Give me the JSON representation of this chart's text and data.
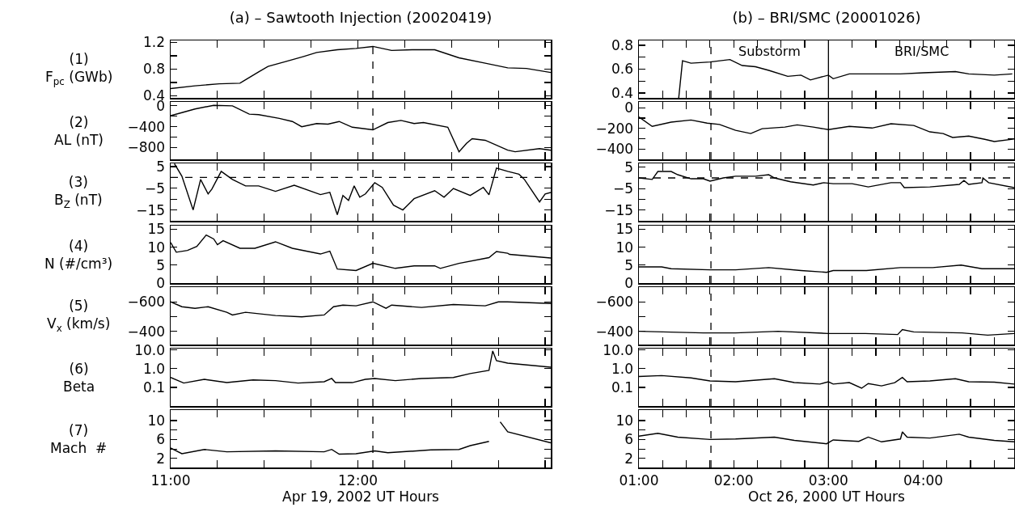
{
  "chart_data": [
    {
      "type": "line",
      "title": "(a) – Sawtooth Injection (20020419)",
      "ylabel": "(1)\nF$_{pc}$ (GWb)",
      "color": "#000000",
      "tick_labels": "y",
      "xlim": [
        11,
        13.03
      ],
      "xticks": [
        11,
        11.25,
        11.5,
        11.75,
        12,
        12.25,
        12.5,
        12.75,
        13
      ],
      "ylim": [
        0.37,
        1.23
      ],
      "yticks": [
        0.4,
        {
          "value": 0.6,
          "label": null
        },
        0.8,
        {
          "value": 1.0,
          "label": null
        },
        1.2
      ],
      "ref_lines": [
        {
          "axis": "x",
          "value": 12.08,
          "line_style": "dashed",
          "color": "#000000"
        }
      ],
      "x": [
        11.0,
        11.13,
        11.26,
        11.37,
        11.4,
        11.47,
        11.52,
        11.61,
        11.71,
        11.78,
        11.89,
        11.99,
        12.08,
        12.18,
        12.29,
        12.41,
        12.54,
        12.68,
        12.8,
        12.9,
        13.03
      ],
      "values": [
        0.51,
        0.55,
        0.58,
        0.59,
        0.64,
        0.76,
        0.84,
        0.91,
        0.99,
        1.05,
        1.09,
        1.11,
        1.14,
        1.08,
        1.09,
        1.09,
        0.97,
        0.89,
        0.82,
        0.81,
        0.75
      ]
    },
    {
      "type": "line",
      "ylabel": "(2)\nAL (nT)",
      "color": "#000000",
      "tick_labels": "y",
      "xlim": [
        11,
        13.03
      ],
      "xticks": [
        11,
        11.25,
        11.5,
        11.75,
        12,
        12.25,
        12.5,
        12.75,
        13
      ],
      "ylim": [
        -1025,
        75
      ],
      "yticks": [
        -800,
        {
          "value": -600,
          "label": null
        },
        -400,
        {
          "value": -200,
          "label": null
        },
        0
      ],
      "ref_lines": [
        {
          "axis": "x",
          "value": 12.08,
          "line_style": "dashed",
          "color": "#000000"
        }
      ],
      "x": [
        11.0,
        11.06,
        11.13,
        11.23,
        11.33,
        11.42,
        11.47,
        11.58,
        11.65,
        11.7,
        11.78,
        11.84,
        11.9,
        11.97,
        12.08,
        12.16,
        12.23,
        12.3,
        12.35,
        12.48,
        12.54,
        12.58,
        12.61,
        12.68,
        12.8,
        12.84,
        12.97,
        13.03
      ],
      "values": [
        -190,
        -130,
        -60,
        10,
        0,
        -160,
        -170,
        -240,
        -300,
        -400,
        -340,
        -350,
        -300,
        -410,
        -460,
        -320,
        -280,
        -340,
        -320,
        -410,
        -880,
        -720,
        -630,
        -660,
        -850,
        -880,
        -820,
        -850
      ]
    },
    {
      "type": "line",
      "ylabel": "(3)\nB$_{Z}$ (nT)",
      "color": "#000000",
      "tick_labels": "y",
      "xlim": [
        11,
        13.03
      ],
      "xticks": [
        11,
        11.25,
        11.5,
        11.75,
        12,
        12.25,
        12.5,
        12.75,
        13
      ],
      "ylim": [
        -20,
        6.5
      ],
      "yticks": [
        -15,
        {
          "value": -10,
          "label": null
        },
        -5,
        5
      ],
      "ref_lines": [
        {
          "axis": "x",
          "value": 12.08,
          "line_style": "dashed",
          "color": "#000000"
        },
        {
          "axis": "y",
          "value": 0,
          "line_style": "dashed",
          "color": "#000000"
        }
      ],
      "x": [
        11.02,
        11.06,
        11.12,
        11.16,
        11.2,
        11.22,
        11.27,
        11.33,
        11.4,
        11.47,
        11.56,
        11.66,
        11.8,
        11.85,
        11.89,
        11.92,
        11.95,
        11.98,
        12.01,
        12.04,
        12.09,
        12.13,
        12.19,
        12.24,
        12.3,
        12.41,
        12.46,
        12.51,
        12.6,
        12.67,
        12.7,
        12.74,
        12.8,
        12.86,
        12.89,
        12.97,
        13.0,
        13.03
      ],
      "values": [
        6.4,
        0.6,
        -15,
        -0.9,
        -7.6,
        -5.4,
        2.8,
        -0.9,
        -3.9,
        -3.9,
        -6.4,
        -3.6,
        -7.9,
        -6.9,
        -17.2,
        -8.3,
        -10.6,
        -3.9,
        -9.1,
        -7.6,
        -2.4,
        -4.6,
        -12.8,
        -15,
        -9.8,
        -6.1,
        -9.1,
        -5.1,
        -8.3,
        -4.6,
        -8,
        4.3,
        2.8,
        1.5,
        -1,
        -11.3,
        -7.6,
        -6.9
      ]
    },
    {
      "type": "line",
      "ylabel": "(4)\nN (#/cm³)",
      "color": "#000000",
      "tick_labels": "y",
      "xlim": [
        11,
        13.03
      ],
      "xticks": [
        11,
        11.25,
        11.5,
        11.75,
        12,
        12.25,
        12.5,
        12.75,
        13
      ],
      "ylim": [
        0,
        16
      ],
      "yticks": [
        0,
        5,
        10,
        15
      ],
      "ref_lines": [
        {
          "axis": "x",
          "value": 12.08,
          "line_style": "dashed",
          "color": "#000000"
        }
      ],
      "x": [
        11.0,
        11.03,
        11.09,
        11.14,
        11.19,
        11.23,
        11.25,
        11.28,
        11.37,
        11.45,
        11.56,
        11.65,
        11.8,
        11.85,
        11.89,
        11.99,
        12.08,
        12.2,
        12.3,
        12.41,
        12.44,
        12.54,
        12.7,
        12.74,
        12.8,
        12.81,
        13.03
      ],
      "values": [
        11.3,
        8.6,
        9.1,
        10.2,
        13.4,
        12.3,
        10.7,
        11.8,
        9.7,
        9.7,
        11.5,
        9.7,
        8.1,
        8.9,
        3.9,
        3.5,
        5.5,
        4.1,
        4.8,
        4.8,
        4.1,
        5.5,
        7.1,
        8.8,
        8.3,
        8.0,
        7.0
      ]
    },
    {
      "type": "line",
      "ylabel": "(5)\nV$_{x}$ (km/s)",
      "color": "#000000",
      "tick_labels": "y",
      "xlim": [
        11,
        13.03
      ],
      "xticks": [
        11,
        11.25,
        11.5,
        11.75,
        12,
        12.25,
        12.5,
        12.75,
        13
      ],
      "ylim": [
        -310,
        -700
      ],
      "yticks": [
        -600,
        {
          "value": -500,
          "label": null
        },
        -400
      ],
      "ref_lines": [
        {
          "axis": "x",
          "value": 12.08,
          "line_style": "dashed",
          "color": "#000000"
        }
      ],
      "x": [
        11.0,
        11.06,
        11.13,
        11.2,
        11.3,
        11.33,
        11.4,
        11.56,
        11.7,
        11.82,
        11.87,
        11.92,
        11.99,
        12.08,
        12.15,
        12.18,
        12.34,
        12.51,
        12.68,
        12.75,
        12.8,
        13.03
      ],
      "values": [
        -600,
        -567,
        -556,
        -567,
        -529,
        -511,
        -529,
        -507,
        -498,
        -511,
        -567,
        -578,
        -573,
        -600,
        -556,
        -578,
        -562,
        -582,
        -573,
        -600,
        -600,
        -589
      ]
    },
    {
      "type": "line",
      "ylabel": "(6)\nBeta",
      "color": "#000000",
      "log": true,
      "tick_labels": "y",
      "xlim": [
        11,
        13.03
      ],
      "xticks": [
        11,
        11.25,
        11.5,
        11.75,
        12,
        12.25,
        12.5,
        12.75,
        13
      ],
      "ylim": [
        0.01,
        12
      ],
      "yticks": [
        {
          "value": 0.1,
          "label": "0.1"
        },
        {
          "value": 1,
          "label": "1.0"
        },
        {
          "value": 10,
          "label": "10.0"
        }
      ],
      "ref_lines": [
        {
          "axis": "x",
          "value": 12.08,
          "line_style": "dashed",
          "color": "#000000"
        }
      ],
      "x": [
        11.0,
        11.07,
        11.18,
        11.3,
        11.44,
        11.56,
        11.68,
        11.82,
        11.86,
        11.88,
        11.97,
        12.04,
        12.09,
        12.2,
        12.34,
        12.51,
        12.6,
        12.7,
        12.72,
        12.74,
        12.8,
        13.03
      ],
      "values": [
        0.34,
        0.17,
        0.27,
        0.18,
        0.25,
        0.23,
        0.17,
        0.2,
        0.3,
        0.18,
        0.18,
        0.27,
        0.3,
        0.23,
        0.3,
        0.34,
        0.55,
        0.82,
        8.9,
        2.7,
        2.0,
        1.2
      ]
    },
    {
      "type": "line",
      "ylabel": "(7)\nMach  #",
      "xlabel": "Apr 19, 2002 UT Hours",
      "color": "#000000",
      "xlim": [
        11,
        13.03
      ],
      "xticks": [
        {
          "value": 11,
          "label": "11:00"
        },
        {
          "value": 11.25,
          "label": null
        },
        {
          "value": 11.5,
          "label": null
        },
        {
          "value": 11.75,
          "label": null
        },
        {
          "value": 12,
          "label": "12:00"
        },
        {
          "value": 12.25,
          "label": null
        },
        {
          "value": 12.5,
          "label": null
        },
        {
          "value": 12.75,
          "label": null
        },
        {
          "value": 13,
          "label": null
        }
      ],
      "ylim": [
        0.1,
        12.2
      ],
      "yticks": [
        2,
        {
          "value": 4,
          "label": null
        },
        6,
        {
          "value": 8,
          "label": null
        },
        10
      ],
      "ref_lines": [
        {
          "axis": "x",
          "value": 12.08,
          "line_style": "dashed",
          "color": "#000000"
        }
      ],
      "x": [
        11.0,
        11.06,
        11.18,
        11.3,
        11.56,
        11.82,
        11.86,
        11.9,
        11.99,
        12.09,
        12.16,
        12.39,
        12.54,
        12.6,
        12.7,
        12.72,
        12.74,
        12.76,
        12.8,
        13.03
      ],
      "values": [
        4.2,
        3.0,
        3.9,
        3.4,
        3.6,
        3.4,
        3.9,
        2.9,
        3.0,
        3.6,
        3.2,
        3.8,
        3.9,
        4.7,
        5.6,
        null,
        null,
        9.7,
        7.6,
        5.3
      ]
    },
    {
      "type": "line",
      "title": "(b) – BRI/SMC (20001026)",
      "color": "#000000",
      "tick_labels": "y",
      "xlim": [
        1,
        4.96
      ],
      "xticks": [
        1,
        1.25,
        1.5,
        1.75,
        2,
        2.25,
        2.5,
        2.75,
        3,
        3.25,
        3.5,
        3.75,
        4,
        4.25,
        4.5,
        4.75
      ],
      "ylim": [
        0.36,
        0.84
      ],
      "yticks": [
        0.4,
        {
          "value": 0.5,
          "label": null
        },
        0.6,
        {
          "value": 0.7,
          "label": null
        },
        0.8
      ],
      "ref_lines": [
        {
          "axis": "x",
          "value": 1.76,
          "line_style": "dashed",
          "color": "#000000"
        },
        {
          "axis": "x",
          "value": 3,
          "line_style": "solid",
          "color": "#000000"
        }
      ],
      "annotations": [
        "Substorm",
        "BRI/SMC"
      ],
      "x": [
        1.42,
        1.46,
        1.55,
        1.75,
        1.96,
        2.09,
        2.23,
        2.37,
        2.57,
        2.71,
        2.81,
        3.0,
        3.05,
        3.22,
        3.49,
        3.76,
        4.0,
        4.34,
        4.48,
        4.75,
        4.94
      ],
      "values": [
        0.36,
        0.67,
        0.65,
        0.66,
        0.68,
        0.63,
        0.62,
        0.59,
        0.54,
        0.55,
        0.51,
        0.55,
        0.52,
        0.56,
        0.56,
        0.56,
        0.57,
        0.58,
        0.56,
        0.55,
        0.56
      ]
    },
    {
      "type": "line",
      "color": "#000000",
      "tick_labels": "y",
      "xlim": [
        1,
        4.96
      ],
      "xticks": [
        1,
        1.25,
        1.5,
        1.75,
        2,
        2.25,
        2.5,
        2.75,
        3,
        3.25,
        3.5,
        3.75,
        4,
        4.25,
        4.5,
        4.75
      ],
      "ylim": [
        -500,
        56
      ],
      "yticks": [
        -400,
        {
          "value": -300,
          "label": null
        },
        -200,
        {
          "value": -100,
          "label": null
        },
        0
      ],
      "ref_lines": [
        {
          "axis": "x",
          "value": 1.76,
          "line_style": "dashed",
          "color": "#000000"
        },
        {
          "axis": "x",
          "value": 3,
          "line_style": "solid",
          "color": "#000000"
        }
      ],
      "x": [
        1.0,
        1.14,
        1.34,
        1.55,
        1.72,
        1.85,
        2.02,
        2.18,
        2.3,
        2.54,
        2.67,
        2.84,
        3.0,
        3.22,
        3.46,
        3.66,
        3.9,
        4.07,
        4.21,
        4.31,
        4.48,
        4.65,
        4.75,
        4.96
      ],
      "values": [
        -90,
        -181,
        -140,
        -119,
        -150,
        -162,
        -219,
        -250,
        -203,
        -188,
        -166,
        -188,
        -212,
        -181,
        -197,
        -156,
        -172,
        -234,
        -250,
        -288,
        -275,
        -306,
        -328,
        -303
      ]
    },
    {
      "type": "line",
      "color": "#000000",
      "tick_labels": "y",
      "xlim": [
        1,
        4.96
      ],
      "xticks": [
        1,
        1.25,
        1.5,
        1.75,
        2,
        2.25,
        2.5,
        2.75,
        3,
        3.25,
        3.5,
        3.75,
        4,
        4.25,
        4.5,
        4.75
      ],
      "ylim": [
        -20,
        6.8
      ],
      "yticks": [
        -15,
        {
          "value": -10,
          "label": null
        },
        -5,
        5
      ],
      "ref_lines": [
        {
          "axis": "x",
          "value": 1.76,
          "line_style": "dashed",
          "color": "#000000"
        },
        {
          "axis": "x",
          "value": 3,
          "line_style": "solid",
          "color": "#000000"
        },
        {
          "axis": "y",
          "value": 0,
          "line_style": "dashed",
          "color": "#000000"
        }
      ],
      "x": [
        1.0,
        1.14,
        1.2,
        1.34,
        1.41,
        1.55,
        1.68,
        1.75,
        1.89,
        2.02,
        2.23,
        2.37,
        2.43,
        2.6,
        2.84,
        2.95,
        3.05,
        3.25,
        3.42,
        3.66,
        3.76,
        3.8,
        4.07,
        4.38,
        4.43,
        4.48,
        4.62,
        4.63,
        4.69,
        4.96
      ],
      "values": [
        0,
        -0.7,
        3,
        3,
        1.5,
        -0.4,
        -0.4,
        -1.5,
        0,
        0.8,
        0.8,
        1.5,
        0,
        -1.8,
        -3.3,
        -2.2,
        -2.7,
        -2.7,
        -4.2,
        -2.2,
        -2.2,
        -4.5,
        -4.2,
        -3,
        -1.2,
        -3,
        -2.2,
        0,
        -2.2,
        -4.5
      ]
    },
    {
      "type": "line",
      "color": "#000000",
      "tick_labels": "y",
      "xlim": [
        1,
        4.96
      ],
      "xticks": [
        1,
        1.25,
        1.5,
        1.75,
        2,
        2.25,
        2.5,
        2.75,
        3,
        3.25,
        3.5,
        3.75,
        4,
        4.25,
        4.5,
        4.75
      ],
      "ylim": [
        0,
        16
      ],
      "yticks": [
        0,
        5,
        10,
        15
      ],
      "ref_lines": [
        {
          "axis": "x",
          "value": 1.76,
          "line_style": "dashed",
          "color": "#000000"
        },
        {
          "axis": "x",
          "value": 3,
          "line_style": "solid",
          "color": "#000000"
        }
      ],
      "x": [
        1.0,
        1.24,
        1.34,
        1.75,
        2.02,
        2.37,
        2.71,
        2.98,
        3.05,
        3.4,
        3.76,
        4.1,
        4.4,
        4.62,
        4.96
      ],
      "values": [
        4.5,
        4.5,
        4.0,
        3.7,
        3.7,
        4.3,
        3.5,
        3.0,
        3.5,
        3.5,
        4.3,
        4.3,
        5.0,
        4.0,
        4.0
      ]
    },
    {
      "type": "line",
      "color": "#000000",
      "tick_labels": "y",
      "xlim": [
        1,
        4.96
      ],
      "xticks": [
        1,
        1.25,
        1.5,
        1.75,
        2,
        2.25,
        2.5,
        2.75,
        3,
        3.25,
        3.5,
        3.75,
        4,
        4.25,
        4.5,
        4.75
      ],
      "ylim": [
        -310,
        -700
      ],
      "yticks": [
        -600,
        {
          "value": -500,
          "label": null
        },
        -400
      ],
      "ref_lines": [
        {
          "axis": "x",
          "value": 1.76,
          "line_style": "dashed",
          "color": "#000000"
        },
        {
          "axis": "x",
          "value": 3,
          "line_style": "solid",
          "color": "#000000"
        }
      ],
      "x": [
        1.0,
        1.68,
        2.02,
        2.47,
        3.0,
        3.39,
        3.73,
        3.78,
        3.9,
        4.41,
        4.68,
        4.96
      ],
      "values": [
        -400,
        -389,
        -389,
        -400,
        -385,
        -385,
        -378,
        -411,
        -396,
        -389,
        -374,
        -385
      ]
    },
    {
      "type": "line",
      "color": "#000000",
      "log": true,
      "tick_labels": "y",
      "xlim": [
        1,
        4.96
      ],
      "xticks": [
        1,
        1.25,
        1.5,
        1.75,
        2,
        2.25,
        2.5,
        2.75,
        3,
        3.25,
        3.5,
        3.75,
        4,
        4.25,
        4.5,
        4.75
      ],
      "ylim": [
        0.01,
        12
      ],
      "yticks": [
        {
          "value": 0.1,
          "label": "0.1"
        },
        {
          "value": 1,
          "label": "1.0"
        },
        {
          "value": 10,
          "label": "10.0"
        }
      ],
      "ref_lines": [
        {
          "axis": "x",
          "value": 1.76,
          "line_style": "dashed",
          "color": "#000000"
        },
        {
          "axis": "x",
          "value": 3,
          "line_style": "solid",
          "color": "#000000"
        }
      ],
      "x": [
        1.0,
        1.24,
        1.55,
        1.75,
        2.02,
        2.43,
        2.64,
        2.91,
        3.0,
        3.05,
        3.22,
        3.35,
        3.42,
        3.56,
        3.7,
        3.78,
        3.83,
        4.07,
        4.34,
        4.48,
        4.75,
        4.96
      ],
      "values": [
        0.38,
        0.43,
        0.32,
        0.22,
        0.2,
        0.29,
        0.18,
        0.15,
        0.2,
        0.15,
        0.18,
        0.09,
        0.16,
        0.12,
        0.18,
        0.34,
        0.2,
        0.22,
        0.29,
        0.2,
        0.19,
        0.15
      ]
    },
    {
      "type": "line",
      "xlabel": "Oct 26, 2000 UT Hours",
      "color": "#000000",
      "xlim": [
        1,
        4.96
      ],
      "xticks": [
        {
          "value": 1,
          "label": "01:00"
        },
        {
          "value": 1.25,
          "label": null
        },
        {
          "value": 1.5,
          "label": null
        },
        {
          "value": 1.75,
          "label": null
        },
        {
          "value": 2,
          "label": "02:00"
        },
        {
          "value": 2.25,
          "label": null
        },
        {
          "value": 2.5,
          "label": null
        },
        {
          "value": 2.75,
          "label": null
        },
        {
          "value": 3,
          "label": "03:00"
        },
        {
          "value": 3.25,
          "label": null
        },
        {
          "value": 3.5,
          "label": null
        },
        {
          "value": 3.75,
          "label": null
        },
        {
          "value": 4,
          "label": "04:00"
        },
        {
          "value": 4.25,
          "label": null
        },
        {
          "value": 4.5,
          "label": null
        },
        {
          "value": 4.75,
          "label": null
        }
      ],
      "ylim": [
        0.1,
        12.2
      ],
      "yticks": [
        2,
        {
          "value": 4,
          "label": null
        },
        6,
        {
          "value": 8,
          "label": null
        },
        10
      ],
      "ref_lines": [
        {
          "axis": "x",
          "value": 1.76,
          "line_style": "dashed",
          "color": "#000000"
        },
        {
          "axis": "x",
          "value": 3,
          "line_style": "solid",
          "color": "#000000"
        }
      ],
      "x": [
        1.0,
        1.2,
        1.41,
        1.75,
        2.02,
        2.43,
        2.64,
        2.98,
        3.05,
        3.32,
        3.42,
        3.56,
        3.76,
        3.78,
        3.83,
        4.07,
        4.38,
        4.48,
        4.75,
        4.96
      ],
      "values": [
        6.7,
        7.3,
        6.5,
        6.0,
        6.1,
        6.5,
        5.8,
        5.1,
        5.9,
        5.6,
        6.5,
        5.5,
        6.1,
        7.6,
        6.5,
        6.3,
        7.1,
        6.5,
        5.8,
        5.5
      ]
    }
  ]
}
